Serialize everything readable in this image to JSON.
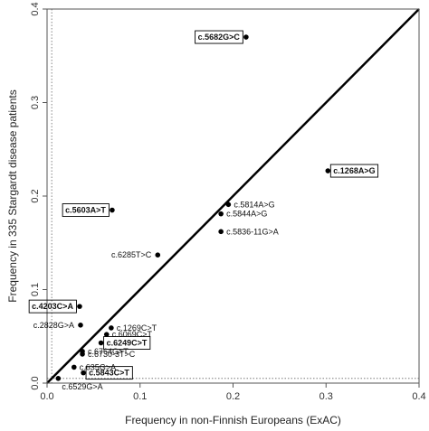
{
  "chart_data": {
    "type": "scatter",
    "xlabel": "Frequency in non-Finnish Europeans (ExAC)",
    "ylabel": "Frequency in 335 Stargardt disease patients",
    "xlim": [
      0,
      0.4
    ],
    "ylim": [
      0,
      0.4
    ],
    "x_ticks": [
      "0.0",
      "0.1",
      "0.2",
      "0.3",
      "0.4"
    ],
    "y_ticks": [
      "0.0",
      "0.1",
      "0.2",
      "0.3",
      "0.4"
    ],
    "reference_lines": {
      "identity_line": true,
      "x_dotted_at": 0.005,
      "y_dotted_at": 0.005
    },
    "points": [
      {
        "label": "c.5682G>C",
        "x": 0.214,
        "y": 0.37,
        "boxed": true,
        "side": "left"
      },
      {
        "label": "c.1268A>G",
        "x": 0.302,
        "y": 0.227,
        "boxed": true,
        "side": "right"
      },
      {
        "label": "c.5814A>G",
        "x": 0.195,
        "y": 0.191,
        "boxed": false,
        "side": "right"
      },
      {
        "label": "c.5603A>T",
        "x": 0.07,
        "y": 0.185,
        "boxed": true,
        "side": "left"
      },
      {
        "label": "c.5844A>G",
        "x": 0.187,
        "y": 0.181,
        "boxed": false,
        "side": "right"
      },
      {
        "label": "c.5836-11G>A",
        "x": 0.187,
        "y": 0.162,
        "boxed": false,
        "side": "right"
      },
      {
        "label": "c.6285T>C",
        "x": 0.119,
        "y": 0.137,
        "boxed": false,
        "side": "left"
      },
      {
        "label": "c.4203C>A",
        "x": 0.035,
        "y": 0.082,
        "boxed": true,
        "side": "left"
      },
      {
        "label": "c.2828G>A",
        "x": 0.036,
        "y": 0.062,
        "boxed": false,
        "side": "left"
      },
      {
        "label": "c.1269C>T",
        "x": 0.069,
        "y": 0.059,
        "boxed": false,
        "side": "right"
      },
      {
        "label": "c.6069C>T",
        "x": 0.064,
        "y": 0.052,
        "boxed": false,
        "side": "right"
      },
      {
        "label": "c.6249C>T",
        "x": 0.058,
        "y": 0.043,
        "boxed": true,
        "side": "right"
      },
      {
        "label": "c.6764G>T",
        "x": 0.038,
        "y": 0.034,
        "boxed": false,
        "side": "right"
      },
      {
        "label": "c.6730-3T>C",
        "x": 0.038,
        "y": 0.031,
        "boxed": false,
        "side": "right"
      },
      {
        "label": "c.635G>A",
        "x": 0.029,
        "y": 0.017,
        "boxed": false,
        "side": "right"
      },
      {
        "label": "c.5843C>T",
        "x": 0.039,
        "y": 0.011,
        "boxed": true,
        "side": "right"
      },
      {
        "label": "c.6529G>A",
        "x": 0.012,
        "y": 0.005,
        "boxed": false,
        "side": "below"
      }
    ]
  }
}
